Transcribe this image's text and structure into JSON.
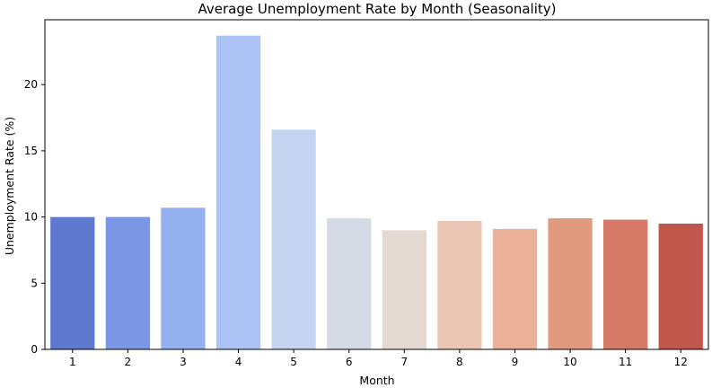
{
  "chart_data": {
    "type": "bar",
    "title": "Average Unemployment Rate by Month (Seasonality)",
    "xlabel": "Month",
    "ylabel": "Unemployment Rate (%)",
    "categories": [
      "1",
      "2",
      "3",
      "4",
      "5",
      "6",
      "7",
      "8",
      "9",
      "10",
      "11",
      "12"
    ],
    "values": [
      10.0,
      10.0,
      10.7,
      23.7,
      16.6,
      9.9,
      9.0,
      9.7,
      9.1,
      9.9,
      9.8,
      9.5
    ],
    "ylim": [
      0,
      24.9
    ],
    "yticks": [
      0,
      5,
      10,
      15,
      20
    ],
    "grid": false,
    "legend": "none",
    "colormap": "coolwarm",
    "colors": [
      "#5f78d0",
      "#7b97e4",
      "#95b0ee",
      "#abc4f5",
      "#c4d4f1",
      "#d5dbe4",
      "#e4d8d2",
      "#ebc6b4",
      "#eab198",
      "#e09a7f",
      "#d67966",
      "#c0564c"
    ],
    "axis_color": "#000000"
  }
}
